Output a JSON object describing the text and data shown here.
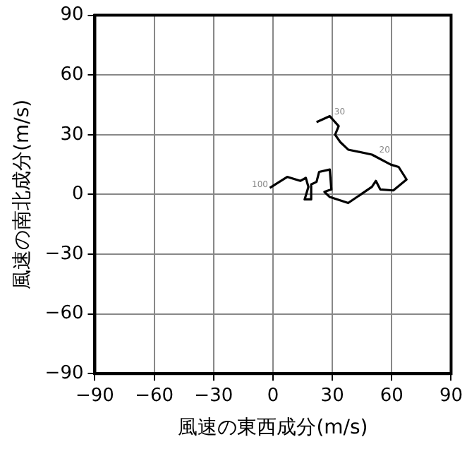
{
  "chart_data": {
    "type": "line",
    "xlabel": "風速の東西成分(m/s)",
    "ylabel": "風速の南北成分(m/s)",
    "x": [
      -1.6,
      7.2,
      13.9,
      16.6,
      17.9,
      16,
      19.3,
      19.3,
      22,
      23.3,
      28.7,
      29.5,
      26,
      28.7,
      38,
      50,
      52,
      54.2,
      60.8,
      67.5,
      63.5,
      59.5,
      50,
      38,
      34,
      31.4,
      33.2,
      28.7,
      22
    ],
    "series": [
      {
        "color": "#000000",
        "values": [
          3.3,
          8.8,
          6.8,
          8.3,
          3.8,
          -2.5,
          -2.5,
          5,
          6.3,
          11.3,
          12.5,
          2.5,
          1.3,
          -1.3,
          -4.3,
          3.8,
          6.8,
          2.5,
          2,
          7.5,
          13.8,
          15,
          20,
          22.5,
          26.3,
          30,
          34.3,
          39.3,
          36.3
        ]
      }
    ],
    "xlim": [
      -90,
      90
    ],
    "ylim": [
      -90,
      90
    ],
    "xticks": [
      {
        "value": -90,
        "label": "−90"
      },
      {
        "value": -60,
        "label": "−60"
      },
      {
        "value": -30,
        "label": "−30"
      },
      0,
      30,
      60,
      90
    ],
    "yticks": [
      {
        "value": -90,
        "label": "−90"
      },
      {
        "value": -60,
        "label": "−60"
      },
      {
        "value": -30,
        "label": "−30"
      },
      0,
      30,
      60,
      90
    ],
    "grid": true,
    "legend": false,
    "marker": "none",
    "line_style": "solid",
    "annotations": [
      {
        "text": "100",
        "x": -1.6,
        "y": 3.3
      },
      {
        "text": "30",
        "x": 28.7,
        "y": 39.3
      },
      {
        "text": "20",
        "x": 50,
        "y": 20
      }
    ]
  }
}
